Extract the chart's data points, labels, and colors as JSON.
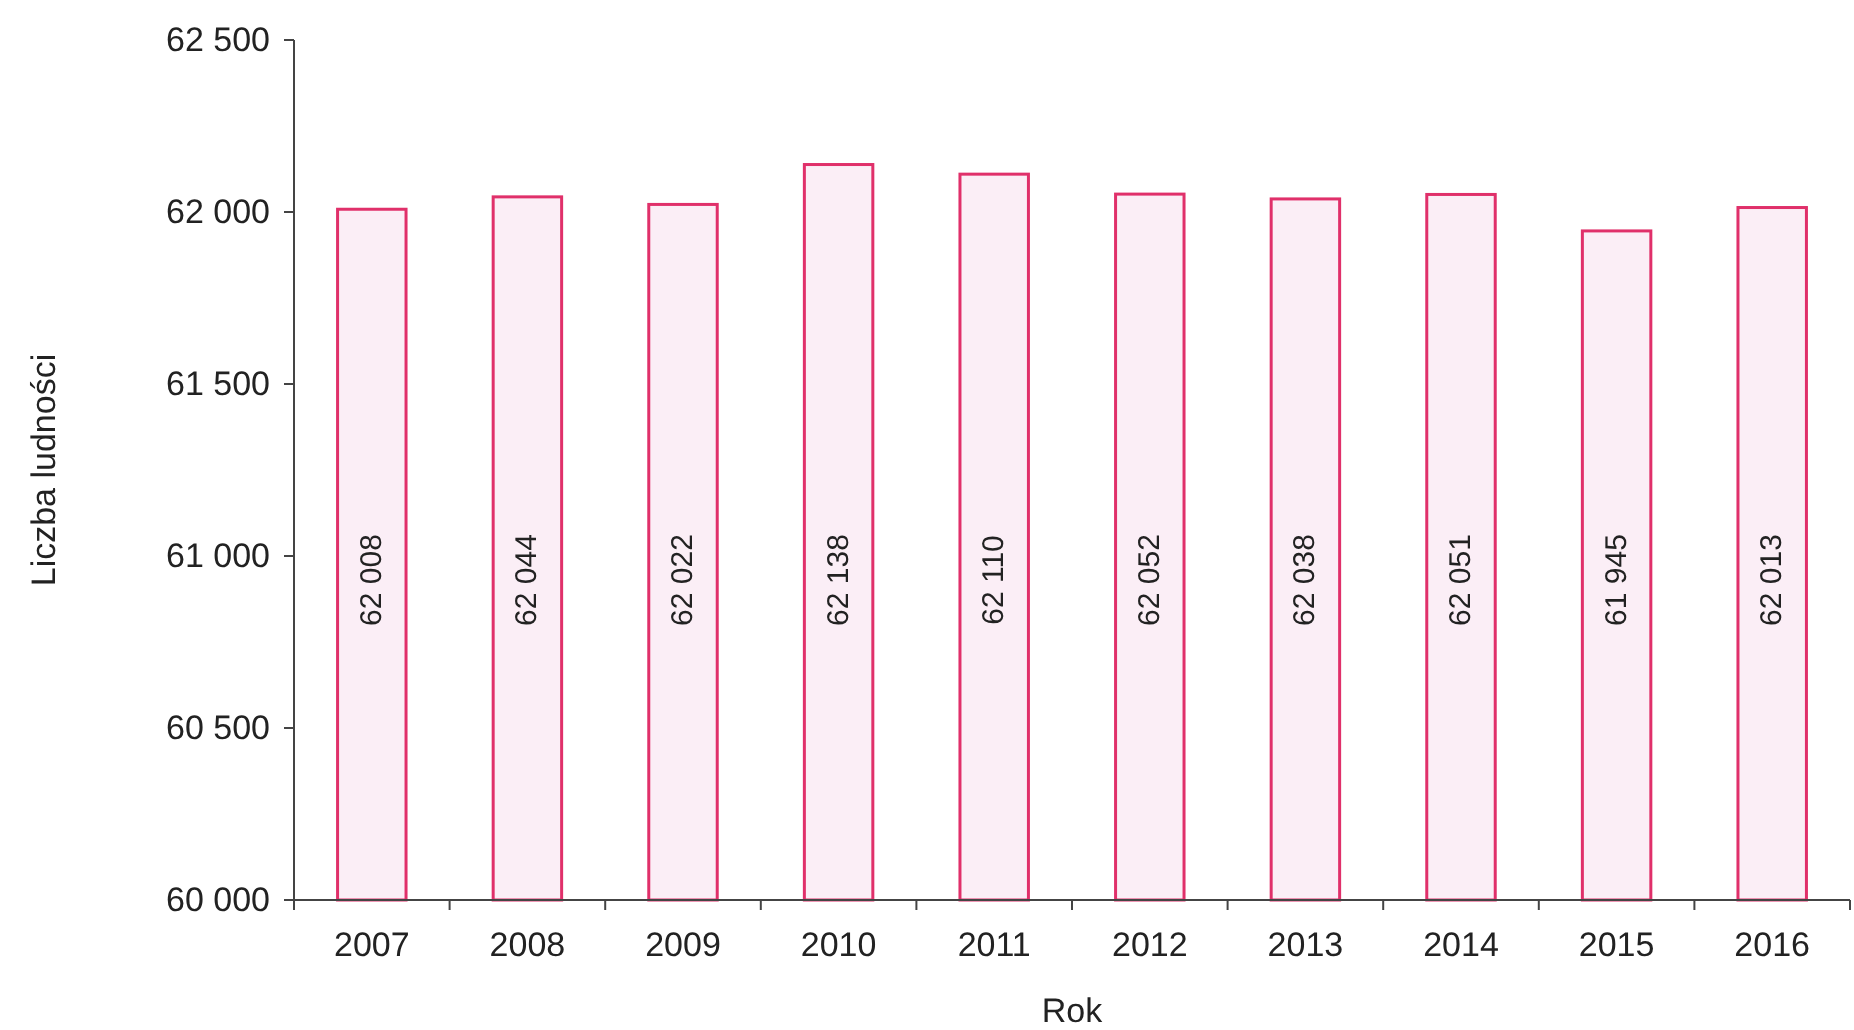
{
  "chart_data": {
    "type": "bar",
    "xlabel": "Rok",
    "ylabel": "Liczba ludności",
    "categories": [
      "2007",
      "2008",
      "2009",
      "2010",
      "2011",
      "2012",
      "2013",
      "2014",
      "2015",
      "2016"
    ],
    "values": [
      62008,
      62044,
      62022,
      62138,
      62110,
      62052,
      62038,
      62051,
      61945,
      62013
    ],
    "value_labels": [
      "62 008",
      "62 044",
      "62 022",
      "62 138",
      "62 110",
      "62 052",
      "62 038",
      "62 051",
      "61 945",
      "62 013"
    ],
    "color": "#fbeef6",
    "ylim": [
      60000,
      62500
    ],
    "yticks": [
      {
        "value": 60000,
        "label": "60 000"
      },
      {
        "value": 60500,
        "label": "60 500"
      },
      {
        "value": 61000,
        "label": "61 000"
      },
      {
        "value": 61500,
        "label": "61 500"
      },
      {
        "value": 62000,
        "label": "62 000"
      },
      {
        "value": 62500,
        "label": "62 500"
      }
    ],
    "grid": false
  }
}
